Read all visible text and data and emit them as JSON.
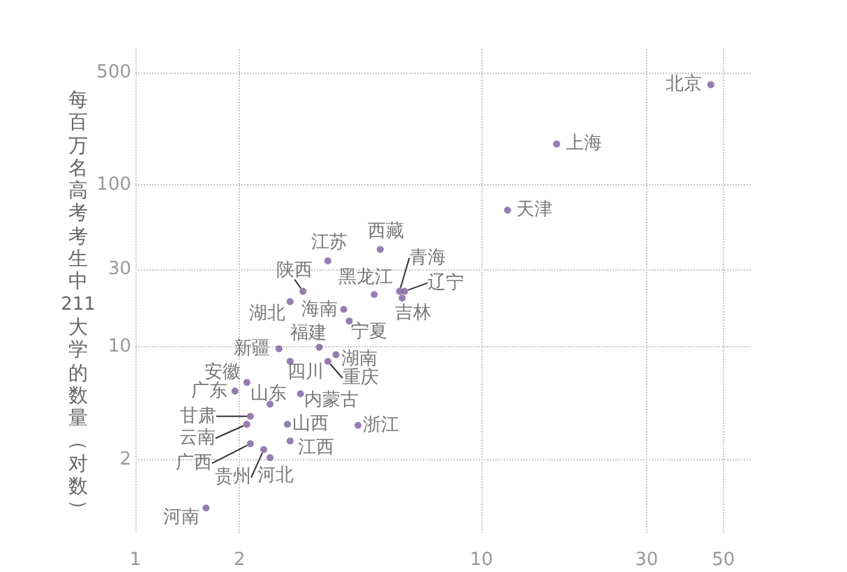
{
  "chart_data": {
    "type": "scatter",
    "ylabel": "每百万名高考考生中211大学的数量（对数）",
    "log": "xy",
    "xlim": [
      1,
      60
    ],
    "xticks": [
      1,
      2,
      10,
      30,
      50
    ],
    "ylim": [
      0.7,
      700
    ],
    "yticks": [
      2,
      10,
      30,
      100,
      500
    ],
    "grid": true,
    "legend": false,
    "marker": "circle",
    "series": [
      {
        "name": "北京",
        "color": "#7b5c9c",
        "x": [
          46
        ],
        "values": [
          420
        ]
      },
      {
        "name": "上海",
        "color": "#7b5c9c",
        "x": [
          16.5
        ],
        "values": [
          180
        ]
      },
      {
        "name": "天津",
        "color": "#7b5c9c",
        "x": [
          11.9
        ],
        "values": [
          70
        ]
      },
      {
        "name": "西藏",
        "color": "#7b5c9c",
        "x": [
          5.1
        ],
        "values": [
          40
        ]
      },
      {
        "name": "江苏",
        "color": "#7b5c9c",
        "x": [
          3.6
        ],
        "values": [
          34
        ]
      },
      {
        "name": "陕西",
        "color": "#7b5c9c",
        "x": [
          3.05
        ],
        "values": [
          22
        ]
      },
      {
        "name": "黑龙江",
        "color": "#7b5c9c",
        "x": [
          4.9
        ],
        "values": [
          21
        ]
      },
      {
        "name": "青海",
        "color": "#7b5c9c",
        "x": [
          5.8
        ],
        "values": [
          22
        ]
      },
      {
        "name": "辽宁",
        "color": "#7b5c9c",
        "x": [
          6.0
        ],
        "values": [
          22
        ]
      },
      {
        "name": "吉林",
        "color": "#7b5c9c",
        "x": [
          5.9
        ],
        "values": [
          20
        ]
      },
      {
        "name": "湖北",
        "color": "#7b5c9c",
        "x": [
          2.8
        ],
        "values": [
          19
        ]
      },
      {
        "name": "海南",
        "color": "#7b5c9c",
        "x": [
          4.0
        ],
        "values": [
          17
        ]
      },
      {
        "name": "宁夏",
        "color": "#7b5c9c",
        "x": [
          4.15
        ],
        "values": [
          14.4
        ]
      },
      {
        "name": "福建",
        "color": "#7b5c9c",
        "x": [
          3.4
        ],
        "values": [
          9.9
        ]
      },
      {
        "name": "新疆",
        "color": "#7b5c9c",
        "x": [
          2.6
        ],
        "values": [
          9.7
        ]
      },
      {
        "name": "湖南",
        "color": "#7b5c9c",
        "x": [
          3.8
        ],
        "values": [
          8.9
        ]
      },
      {
        "name": "四川",
        "color": "#7b5c9c",
        "x": [
          2.8
        ],
        "values": [
          8.1
        ]
      },
      {
        "name": "重庆",
        "color": "#7b5c9c",
        "x": [
          3.6
        ],
        "values": [
          8.1
        ]
      },
      {
        "name": "安徽",
        "color": "#7b5c9c",
        "x": [
          2.1
        ],
        "values": [
          6.0
        ]
      },
      {
        "name": "广东",
        "color": "#7b5c9c",
        "x": [
          1.94
        ],
        "values": [
          5.3
        ]
      },
      {
        "name": "山东",
        "color": "#7b5c9c",
        "x": [
          2.45
        ],
        "values": [
          4.4
        ]
      },
      {
        "name": "内蒙古",
        "color": "#7b5c9c",
        "x": [
          3.0
        ],
        "values": [
          5.1
        ]
      },
      {
        "name": "甘肃",
        "color": "#7b5c9c",
        "x": [
          2.15
        ],
        "values": [
          3.7
        ]
      },
      {
        "name": "云南",
        "color": "#7b5c9c",
        "x": [
          2.1
        ],
        "values": [
          3.3
        ]
      },
      {
        "name": "山西",
        "color": "#7b5c9c",
        "x": [
          2.75
        ],
        "values": [
          3.3
        ]
      },
      {
        "name": "浙江",
        "color": "#7b5c9c",
        "x": [
          4.4
        ],
        "values": [
          3.25
        ]
      },
      {
        "name": "江西",
        "color": "#7b5c9c",
        "x": [
          2.8
        ],
        "values": [
          2.6
        ]
      },
      {
        "name": "广西",
        "color": "#7b5c9c",
        "x": [
          2.15
        ],
        "values": [
          2.5
        ]
      },
      {
        "name": "贵州",
        "color": "#7b5c9c",
        "x": [
          2.35
        ],
        "values": [
          2.3
        ]
      },
      {
        "name": "河北",
        "color": "#7b5c9c",
        "x": [
          2.45
        ],
        "values": [
          2.05
        ]
      },
      {
        "name": "河南",
        "color": "#7b5c9c",
        "x": [
          1.6
        ],
        "values": [
          1.0
        ]
      }
    ]
  }
}
